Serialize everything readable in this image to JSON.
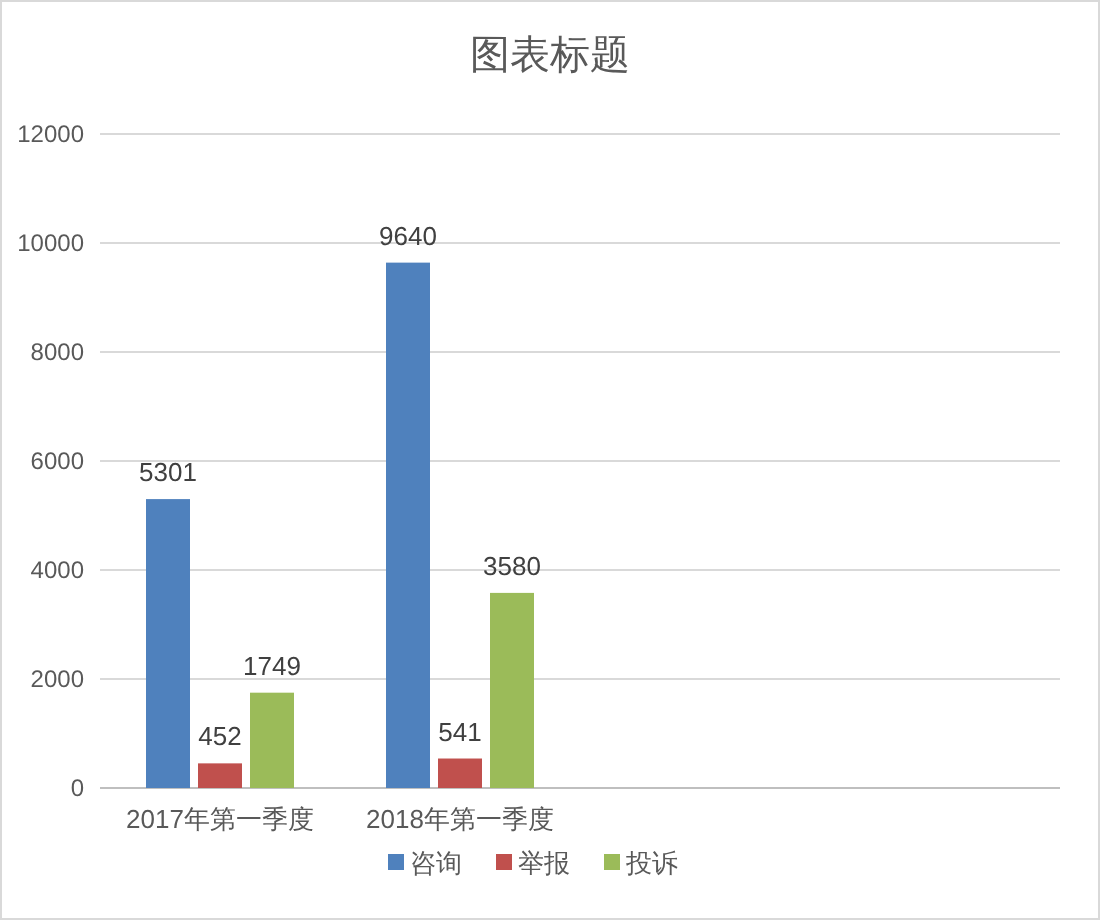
{
  "chart_data": {
    "type": "bar",
    "title": "图表标题",
    "categories": [
      "2017年第一季度",
      "2018年第一季度",
      null,
      null
    ],
    "series": [
      {
        "name": "咨询",
        "color": "#4f81bd",
        "values": [
          5301,
          9640,
          null,
          null
        ]
      },
      {
        "name": "举报",
        "color": "#c0504d",
        "values": [
          452,
          541,
          null,
          null
        ]
      },
      {
        "name": "投诉",
        "color": "#9bbb59",
        "values": [
          1749,
          3580,
          null,
          null
        ]
      }
    ],
    "ylim": [
      0,
      12000
    ],
    "yticks": [
      0,
      2000,
      4000,
      6000,
      8000,
      10000,
      12000
    ],
    "grid": "y",
    "legend": "bottom",
    "data_labels": true
  }
}
